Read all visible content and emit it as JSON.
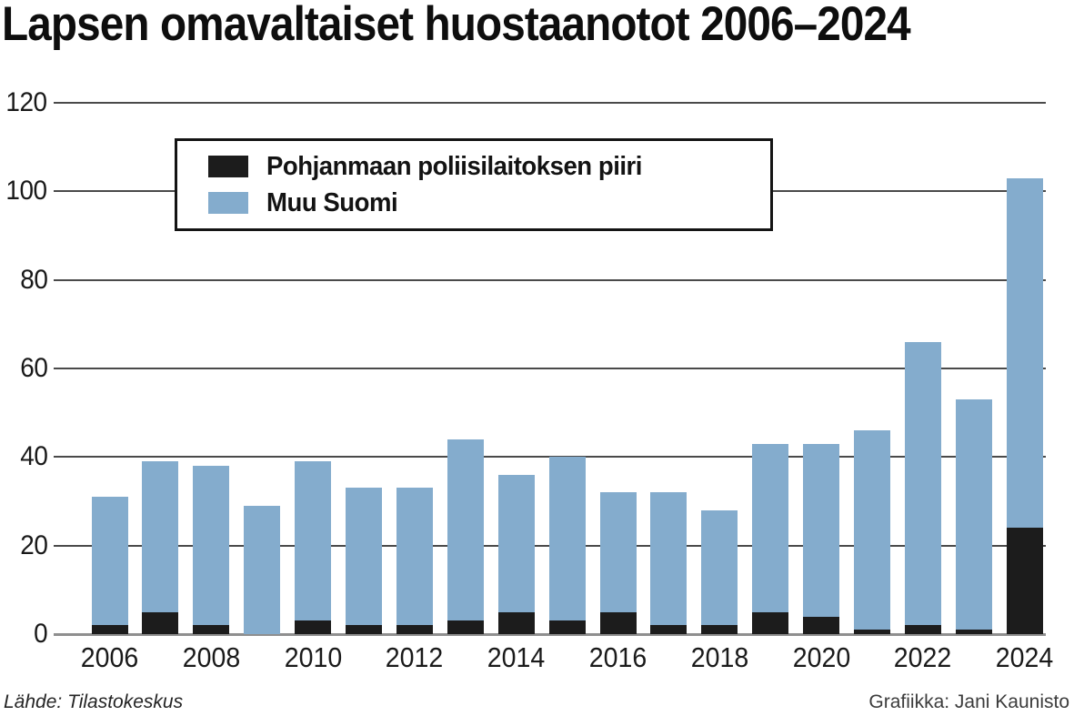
{
  "title": "Lapsen omavaltaiset huostaanotot 2006–2024",
  "legend": {
    "items": [
      {
        "label": "Pohjanmaan poliisilaitoksen piiri",
        "color": "#1c1c1c"
      },
      {
        "label": "Muu Suomi",
        "color": "#84accd"
      }
    ]
  },
  "footer": {
    "source": "Lähde: Tilastokeskus",
    "credit": "Grafiikka: Jani Kaunisto"
  },
  "colors": {
    "series_pohjanmaa": "#1c1c1c",
    "series_muu_suomi": "#84accd",
    "gridline": "#4a4a4a",
    "baseline": "#8f8f8f"
  },
  "chart_data": {
    "type": "bar",
    "stacked": true,
    "title": "Lapsen omavaltaiset huostaanotot 2006–2024",
    "categories": [
      2006,
      2007,
      2008,
      2009,
      2010,
      2011,
      2012,
      2013,
      2014,
      2015,
      2016,
      2017,
      2018,
      2019,
      2020,
      2021,
      2022,
      2023,
      2024
    ],
    "series": [
      {
        "name": "Pohjanmaan poliisilaitoksen piiri",
        "color": "#1c1c1c",
        "values": [
          2,
          5,
          2,
          0,
          3,
          2,
          2,
          3,
          5,
          3,
          5,
          2,
          2,
          5,
          4,
          1,
          2,
          1,
          24
        ]
      },
      {
        "name": "Muu Suomi",
        "color": "#84accd",
        "values": [
          29,
          34,
          36,
          29,
          36,
          31,
          31,
          41,
          31,
          37,
          27,
          30,
          26,
          38,
          39,
          45,
          64,
          52,
          79
        ]
      }
    ],
    "totals": [
      31,
      39,
      38,
      29,
      39,
      33,
      33,
      44,
      36,
      40,
      32,
      32,
      28,
      43,
      43,
      46,
      66,
      53,
      103
    ],
    "xlabel": "",
    "ylabel": "",
    "ylim": [
      0,
      120
    ],
    "yticks": [
      0,
      20,
      40,
      60,
      80,
      100,
      120
    ],
    "x_tick_labels": [
      "2006",
      "2008",
      "2010",
      "2012",
      "2014",
      "2016",
      "2018",
      "2020",
      "2022",
      "2024"
    ],
    "x_tick_every": 2,
    "grid": "horizontal",
    "legend_position": "top-left-inside"
  }
}
